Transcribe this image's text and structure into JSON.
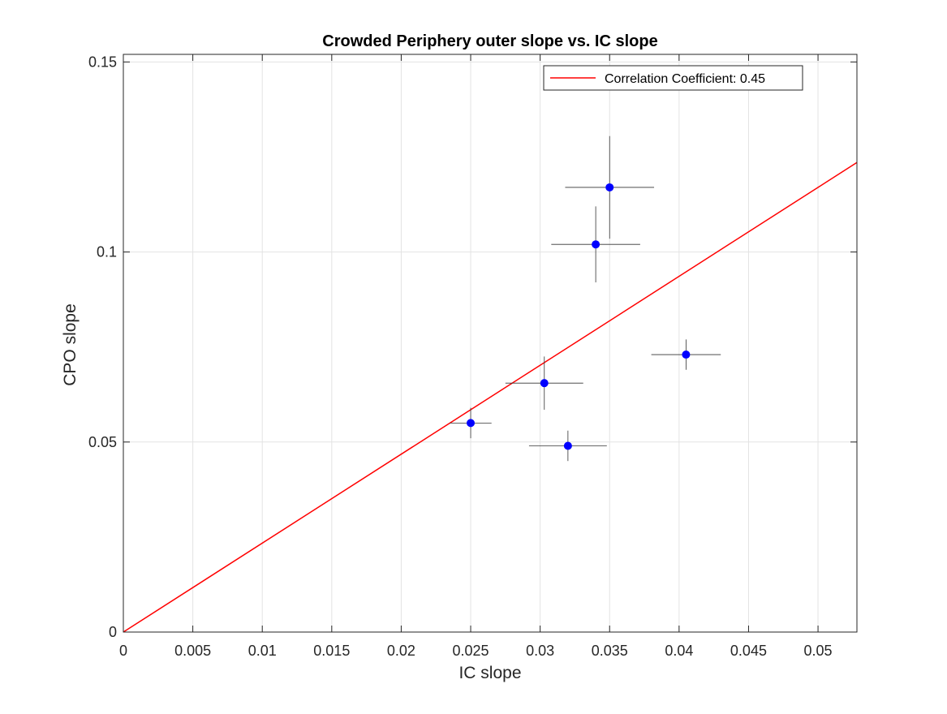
{
  "chart_data": {
    "type": "scatter",
    "title": "Crowded Periphery outer slope vs. IC slope",
    "xlabel": "IC slope",
    "ylabel": "CPO slope",
    "xlim": [
      0,
      0.0528
    ],
    "ylim": [
      0,
      0.152
    ],
    "x_ticks": [
      0,
      0.005,
      0.01,
      0.015,
      0.02,
      0.025,
      0.03,
      0.035,
      0.04,
      0.045,
      0.05
    ],
    "x_tick_labels": [
      "0",
      "0.005",
      "0.01",
      "0.015",
      "0.02",
      "0.025",
      "0.03",
      "0.035",
      "0.04",
      "0.045",
      "0.05"
    ],
    "y_ticks": [
      0,
      0.05,
      0.1,
      0.15
    ],
    "y_tick_labels": [
      "0",
      "0.05",
      "0.1",
      "0.15"
    ],
    "grid": true,
    "legend_position": "top-right",
    "points": [
      {
        "x": 0.025,
        "y": 0.055,
        "xerr": 0.0015,
        "yerr": 0.004
      },
      {
        "x": 0.0303,
        "y": 0.0655,
        "xerr": 0.0028,
        "yerr": 0.007
      },
      {
        "x": 0.032,
        "y": 0.049,
        "xerr": 0.0028,
        "yerr": 0.004
      },
      {
        "x": 0.034,
        "y": 0.102,
        "xerr": 0.0032,
        "yerr": 0.01
      },
      {
        "x": 0.035,
        "y": 0.117,
        "xerr": 0.0032,
        "yerr": 0.0135
      },
      {
        "x": 0.0405,
        "y": 0.073,
        "xerr": 0.0025,
        "yerr": 0.004
      }
    ],
    "fit_line": {
      "label": "Correlation Coefficient: 0.45",
      "slope": 2.34,
      "intercept": 0,
      "color": "#ff0000"
    },
    "point_color": "#0000ff",
    "errorbar_color": "#333333"
  }
}
